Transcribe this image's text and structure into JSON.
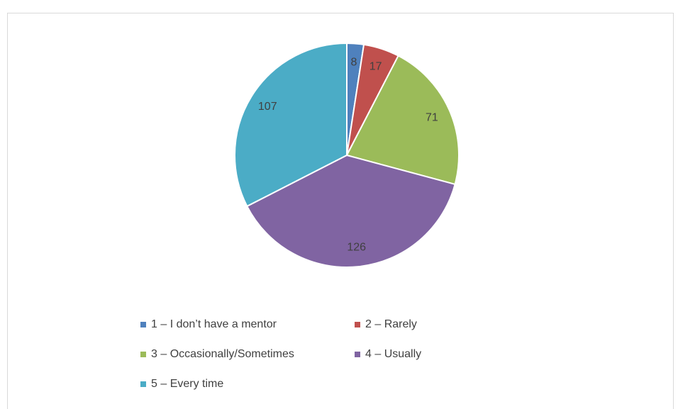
{
  "chart_data": {
    "type": "pie",
    "categories": [
      "1 – I don’t have a mentor",
      "2 – Rarely",
      "3 – Occasionally/Sometimes",
      "4 – Usually",
      "5 – Every time"
    ],
    "values": [
      8,
      17,
      71,
      126,
      107
    ],
    "colors": [
      "#4f81bd",
      "#c0504d",
      "#9bbb59",
      "#8064a2",
      "#4bacc6"
    ],
    "legend": "bottom"
  }
}
